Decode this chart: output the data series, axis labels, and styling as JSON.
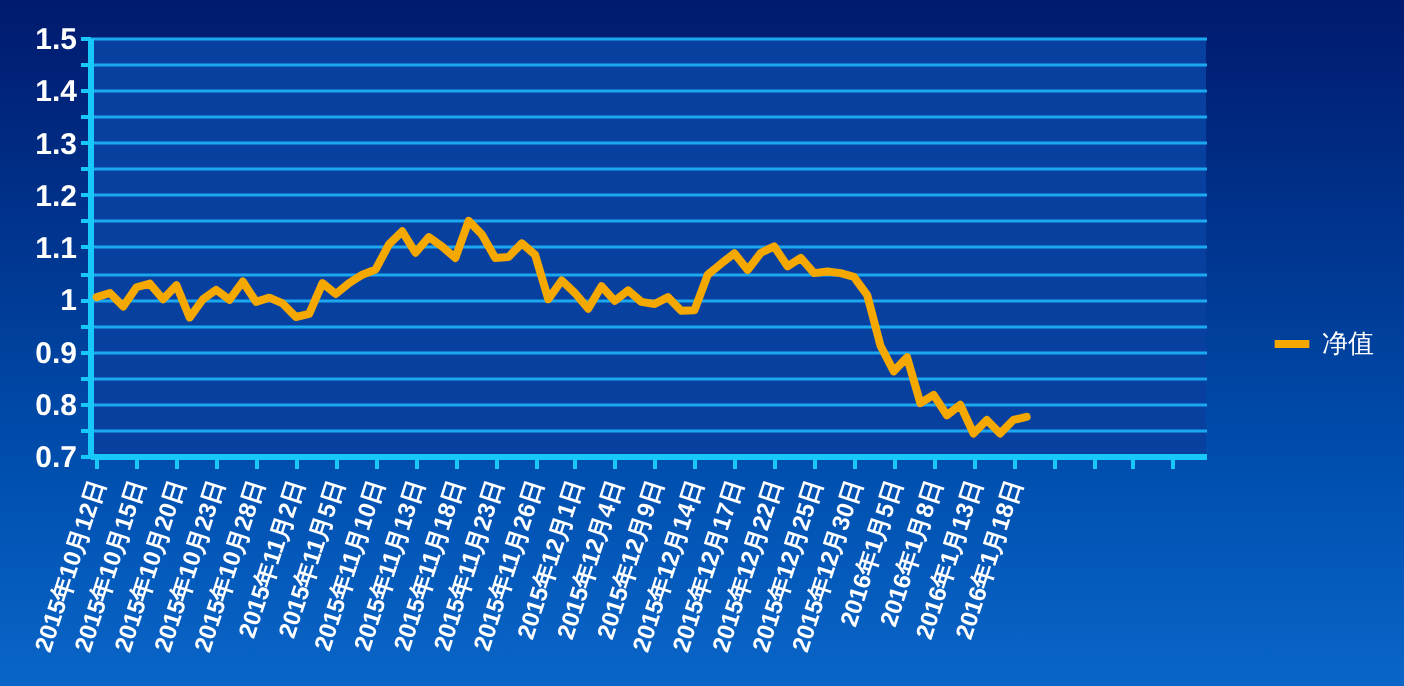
{
  "chart_data": {
    "type": "line",
    "categories": [
      "2015年10月12日",
      null,
      null,
      "2015年10月15日",
      null,
      null,
      "2015年10月20日",
      null,
      null,
      "2015年10月23日",
      null,
      null,
      "2015年10月28日",
      null,
      null,
      "2015年11月2日",
      null,
      null,
      "2015年11月5日",
      null,
      null,
      "2015年11月10日",
      null,
      null,
      "2015年11月13日",
      null,
      null,
      "2015年11月18日",
      null,
      null,
      "2015年11月23日",
      null,
      null,
      "2015年11月26日",
      null,
      null,
      "2015年12月1日",
      null,
      null,
      "2015年12月4日",
      null,
      null,
      "2015年12月9日",
      null,
      null,
      "2015年12月14日",
      null,
      null,
      "2015年12月17日",
      null,
      null,
      "2015年12月22日",
      null,
      null,
      "2015年12月25日",
      null,
      null,
      "2015年12月30日",
      null,
      null,
      "2016年1月5日",
      null,
      null,
      "2016年1月8日",
      null,
      null,
      "2016年1月13日",
      null,
      null,
      "2016年1月18日",
      null,
      null,
      null,
      null,
      null,
      null,
      null,
      null,
      null,
      null,
      null,
      null,
      null,
      null
    ],
    "series": [
      {
        "name": "净值",
        "color": "#f5a800",
        "values": [
          1.004,
          1.012,
          0.986,
          1.023,
          1.03,
          1.0,
          1.027,
          0.965,
          1.0,
          1.018,
          0.999,
          1.034,
          0.995,
          1.003,
          0.992,
          0.966,
          0.972,
          1.031,
          1.01,
          1.031,
          1.047,
          1.057,
          1.105,
          1.13,
          1.089,
          1.119,
          1.101,
          1.079,
          1.15,
          1.124,
          1.079,
          1.081,
          1.107,
          1.085,
          1.0,
          1.036,
          1.012,
          0.982,
          1.025,
          0.997,
          1.017,
          0.995,
          0.991,
          1.004,
          0.978,
          0.979,
          1.047,
          1.068,
          1.088,
          1.056,
          1.089,
          1.101,
          1.063,
          1.079,
          1.05,
          1.053,
          1.05,
          1.043,
          1.008,
          0.911,
          0.862,
          0.889,
          0.801,
          0.817,
          0.778,
          0.798,
          0.743,
          0.769,
          0.743,
          0.769,
          0.775,
          null,
          null,
          null,
          null,
          null,
          null,
          null,
          null,
          null,
          null,
          null,
          null,
          null
        ]
      }
    ],
    "ylim": [
      0.7,
      1.5
    ],
    "yticks": [
      0.7,
      {
        "value": 0.75,
        "label": null
      },
      0.8,
      {
        "value": 0.85,
        "label": null
      },
      0.9,
      {
        "value": 0.95,
        "label": null
      },
      1,
      {
        "value": 1.05,
        "label": null
      },
      1.1,
      {
        "value": 1.15,
        "label": null
      },
      1.2,
      {
        "value": 1.25,
        "label": null
      },
      1.3,
      {
        "value": 1.35,
        "label": null
      },
      1.4,
      {
        "value": 1.45,
        "label": null
      },
      1.5
    ],
    "grid": "y",
    "legend": "right",
    "marker": "none",
    "line_style": "solid"
  }
}
